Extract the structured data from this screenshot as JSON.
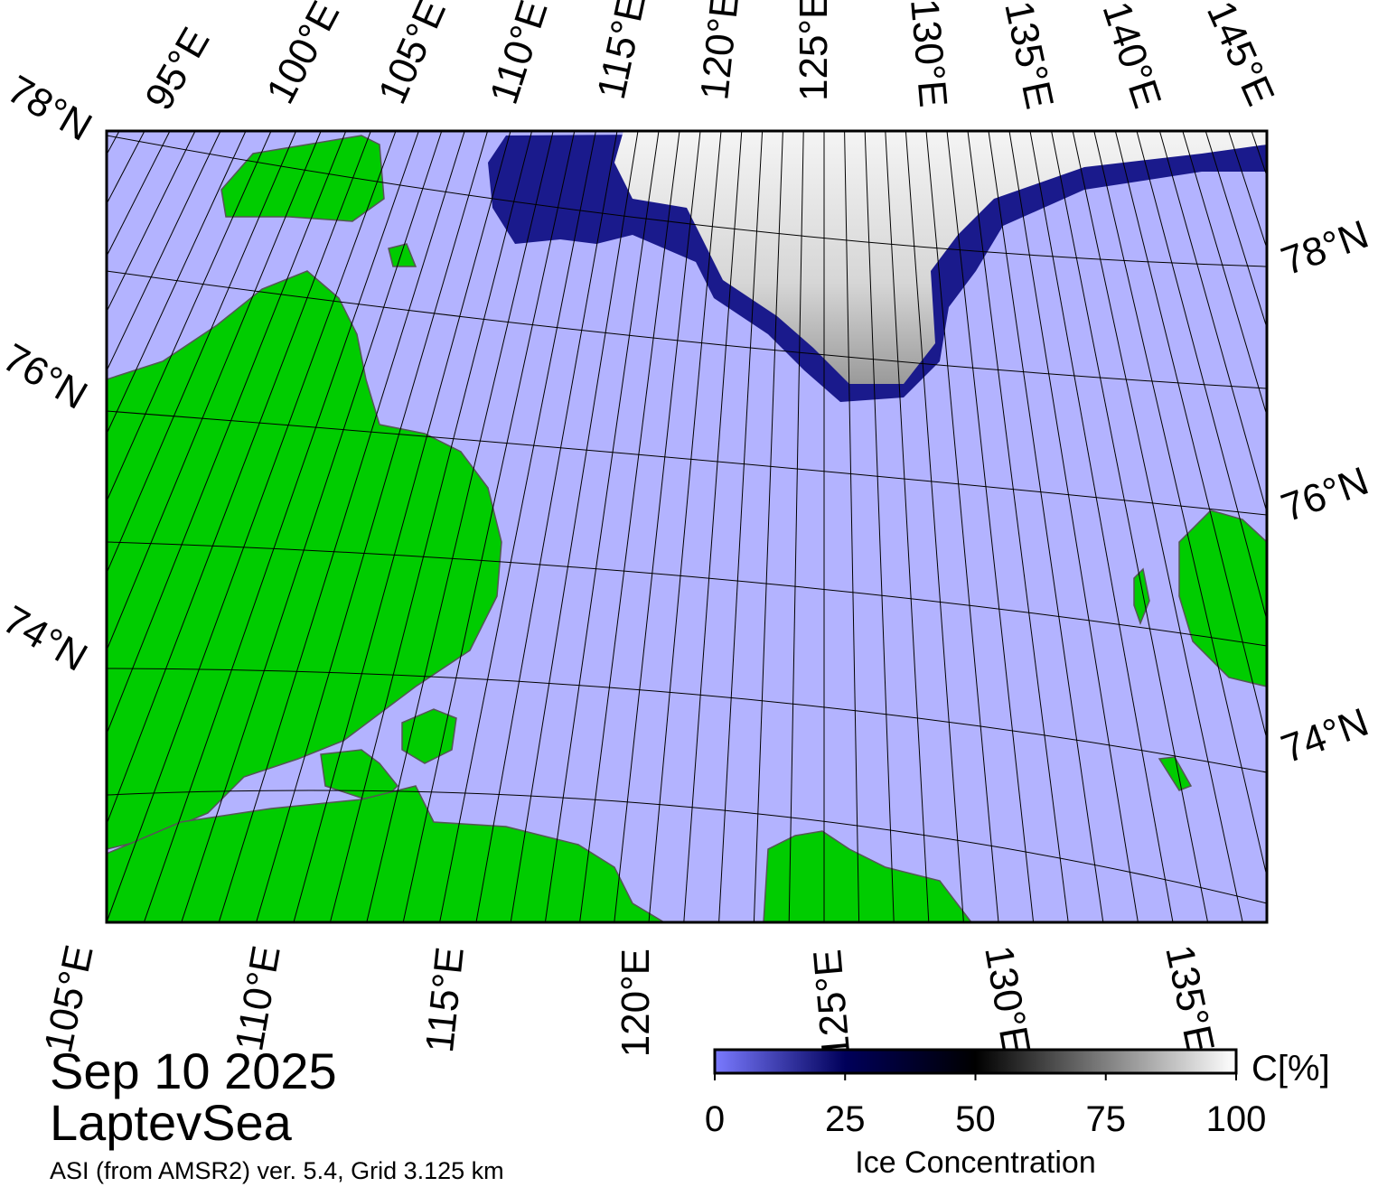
{
  "map": {
    "top_labels": [
      "95°E",
      "100°E",
      "105°E",
      "110°E",
      "115°E",
      "120°E",
      "125°E",
      "130°E",
      "135°E",
      "140°E",
      "145°E"
    ],
    "left_labels": [
      "78°N",
      "76°N",
      "74°N"
    ],
    "right_labels": [
      "78°N",
      "76°N",
      "74°N"
    ],
    "bottom_labels": [
      "105°E",
      "110°E",
      "115°E",
      "120°E",
      "125°E",
      "130°E",
      "135°E"
    ]
  },
  "caption": {
    "date": "Sep 10 2025",
    "region": "LaptevSea",
    "source": "ASI (from AMSR2) ver. 5.4,  Grid 3.125 km"
  },
  "colorbar": {
    "lim": [
      0,
      100
    ],
    "ticks": [
      0,
      25,
      50,
      75,
      100
    ],
    "unit": "C[%]",
    "label": "Ice Concentration"
  }
}
